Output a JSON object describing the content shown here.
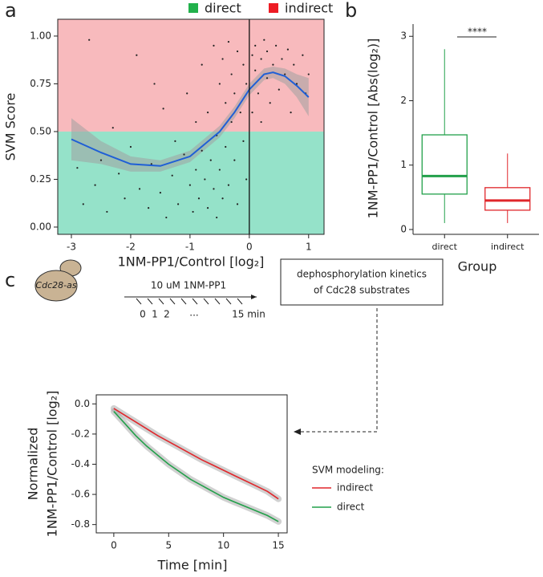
{
  "panel_labels": [
    "a",
    "b",
    "c"
  ],
  "chart_data": [
    {
      "type": "scatter",
      "y_label": "SVM Score",
      "x_label": "1NM-PP1/Control [log₂]",
      "xlim": [
        -3.23,
        1.26
      ],
      "xticks": [
        -3,
        -2,
        -1,
        0,
        1
      ],
      "ylim": [
        -0.038,
        1.088
      ],
      "yticks": [
        {
          "value": 0,
          "label": "0.00"
        },
        {
          "value": 0.25,
          "label": "0.25"
        },
        {
          "value": 0.5,
          "label": "0.50"
        },
        {
          "value": 0.75,
          "label": "0.75"
        },
        {
          "value": 1,
          "label": "1.00"
        }
      ],
      "threshold": 0.5,
      "vline": 0,
      "legend": [
        {
          "name": "direct",
          "color": "#22b14c",
          "fill": "#95e2c9"
        },
        {
          "name": "indirect",
          "color": "#ed1c24",
          "fill": "#f8babd"
        }
      ],
      "points": {
        "color": "#222222",
        "x": [
          -2.9,
          -2.8,
          -2.6,
          -2.5,
          -2.4,
          -2.3,
          -2.2,
          -2.1,
          -2.0,
          -1.9,
          -1.85,
          -1.7,
          -1.65,
          -1.5,
          -1.45,
          -1.4,
          -1.3,
          -1.25,
          -1.2,
          -1.1,
          -1.05,
          -1.0,
          -0.95,
          -0.9,
          -0.9,
          -0.85,
          -0.8,
          -0.8,
          -0.75,
          -0.7,
          -0.7,
          -0.65,
          -0.6,
          -0.6,
          -0.55,
          -0.55,
          -0.5,
          -0.5,
          -0.45,
          -0.45,
          -0.4,
          -0.4,
          -0.35,
          -0.35,
          -0.3,
          -0.3,
          -0.25,
          -0.25,
          -0.2,
          -0.2,
          -0.15,
          -0.1,
          -0.1,
          -0.05,
          -0.05,
          0.05,
          0.05,
          0.1,
          0.1,
          0.15,
          0.2,
          0.2,
          0.25,
          0.3,
          0.3,
          0.35,
          0.4,
          0.45,
          0.5,
          0.55,
          0.6,
          0.65,
          0.7,
          0.75,
          0.8,
          0.9,
          0.95,
          1.0,
          -1.6,
          -2.7
        ],
        "values": [
          0.31,
          0.12,
          0.22,
          0.35,
          0.08,
          0.52,
          0.28,
          0.15,
          0.42,
          0.9,
          0.2,
          0.1,
          0.33,
          0.18,
          0.62,
          0.05,
          0.27,
          0.45,
          0.12,
          0.38,
          0.7,
          0.22,
          0.08,
          0.55,
          0.3,
          0.15,
          0.85,
          0.4,
          0.25,
          0.1,
          0.6,
          0.35,
          0.95,
          0.2,
          0.48,
          0.05,
          0.75,
          0.3,
          0.15,
          0.88,
          0.42,
          0.65,
          0.22,
          0.97,
          0.55,
          0.8,
          0.35,
          0.7,
          0.92,
          0.12,
          0.6,
          0.85,
          0.45,
          0.25,
          0.75,
          0.9,
          0.6,
          0.95,
          0.82,
          0.7,
          0.88,
          0.55,
          0.98,
          0.78,
          0.92,
          0.65,
          0.85,
          0.95,
          0.72,
          0.88,
          0.8,
          0.93,
          0.6,
          0.85,
          0.75,
          0.9,
          0.7,
          0.8,
          0.75,
          0.98
        ]
      },
      "fit": {
        "color": "#1f5fd6",
        "band_color": "#a0a0a0",
        "x": [
          -3,
          -2.5,
          -2,
          -1.5,
          -1,
          -0.5,
          -0.25,
          0,
          0.25,
          0.4,
          0.6,
          0.8,
          1
        ],
        "values": [
          0.46,
          0.39,
          0.33,
          0.32,
          0.37,
          0.5,
          0.6,
          0.72,
          0.8,
          0.81,
          0.79,
          0.74,
          0.68
        ],
        "upper": [
          0.57,
          0.45,
          0.37,
          0.35,
          0.4,
          0.53,
          0.63,
          0.75,
          0.83,
          0.84,
          0.83,
          0.8,
          0.78
        ],
        "lower": [
          0.35,
          0.33,
          0.29,
          0.29,
          0.34,
          0.47,
          0.57,
          0.69,
          0.77,
          0.78,
          0.75,
          0.68,
          0.58
        ]
      }
    },
    {
      "type": "box",
      "y_label": "1NM-PP1/Control [Abs(log₂)]",
      "x_label": "Group",
      "categories": [
        "direct",
        "indirect"
      ],
      "colors": [
        "#22a04a",
        "#e0262b"
      ],
      "ylim": [
        -0.075,
        3.19
      ],
      "yticks": [
        0,
        1,
        2,
        3
      ],
      "boxes": [
        {
          "low": 0.1,
          "q1": 0.55,
          "median": 0.83,
          "q3": 1.47,
          "high": 2.8
        },
        {
          "low": 0.1,
          "q1": 0.3,
          "median": 0.45,
          "q3": 0.65,
          "high": 1.18
        }
      ],
      "significance": "****"
    },
    {
      "type": "line",
      "y_label": [
        "Normalized",
        "1NM-PP1/Control [log₂]"
      ],
      "x_label": "Time [min]",
      "legend_title": "SVM modeling:",
      "xlim": [
        -1.6,
        15.8
      ],
      "xticks": [
        0,
        5,
        10,
        15
      ],
      "ylim": [
        -0.855,
        0.06
      ],
      "yticks": [
        {
          "value": 0,
          "label": "0.0"
        },
        -0.2,
        -0.4,
        -0.6,
        -0.8
      ],
      "x": [
        0,
        1,
        2,
        3,
        4,
        5,
        6,
        7,
        8,
        9,
        10,
        11,
        12,
        13,
        14,
        15
      ],
      "series": [
        {
          "name": "indirect",
          "color": "#e0262b",
          "values": [
            -0.03,
            -0.075,
            -0.12,
            -0.165,
            -0.21,
            -0.25,
            -0.29,
            -0.33,
            -0.37,
            -0.405,
            -0.44,
            -0.475,
            -0.51,
            -0.545,
            -0.58,
            -0.63
          ]
        },
        {
          "name": "direct",
          "color": "#22a04a",
          "values": [
            -0.05,
            -0.13,
            -0.21,
            -0.28,
            -0.34,
            -0.4,
            -0.45,
            -0.5,
            -0.54,
            -0.58,
            -0.62,
            -0.65,
            -0.68,
            -0.71,
            -0.74,
            -0.78
          ]
        }
      ]
    }
  ],
  "diagram": {
    "cell_label": "Cdc28-as",
    "treatment": "10 uM 1NM-PP1",
    "timepoints": [
      "0",
      "1",
      "2",
      "...",
      "15 min"
    ],
    "box_text": [
      "dephosphorylation kinetics",
      "of Cdc28 substrates"
    ]
  }
}
